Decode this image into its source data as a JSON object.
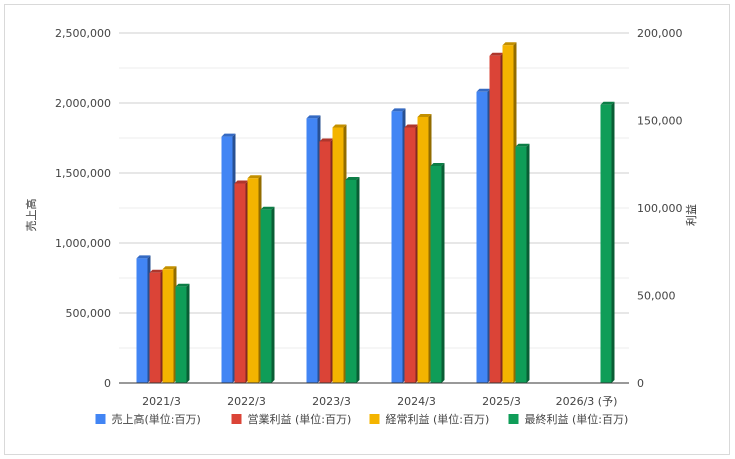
{
  "chart_data": {
    "type": "bar",
    "categories": [
      "2021/3",
      "2022/3",
      "2023/3",
      "2024/3",
      "2025/3",
      "2026/3 (予)"
    ],
    "left_axis": {
      "label": "売上高",
      "ylim": [
        0,
        2500000
      ],
      "ticks": [
        "0",
        "500,000",
        "1,000,000",
        "1,500,000",
        "2,000,000",
        "2,500,000"
      ]
    },
    "right_axis": {
      "label": "利益",
      "ylim": [
        0,
        200000
      ],
      "ticks": [
        "0",
        "50,000",
        "100,000",
        "150,000",
        "200,000"
      ]
    },
    "grid": true,
    "legend_position": "bottom",
    "series": [
      {
        "name": "売上高(単位:百万)",
        "axis": "left",
        "color": "#4285f4",
        "values": [
          890000,
          1760000,
          1890000,
          1940000,
          2080000,
          null
        ]
      },
      {
        "name": "営業利益 (単位:百万)",
        "axis": "right",
        "color": "#db4437",
        "values": [
          63000,
          114000,
          138000,
          146000,
          187000,
          null
        ]
      },
      {
        "name": "経常利益 (単位:百万)",
        "axis": "right",
        "color": "#f4b400",
        "values": [
          65000,
          117000,
          146000,
          152000,
          193000,
          null
        ]
      },
      {
        "name": "最終利益 (単位:百万)",
        "axis": "right",
        "color": "#0f9d58",
        "values": [
          55000,
          99000,
          116000,
          124000,
          135000,
          159000
        ]
      }
    ]
  }
}
